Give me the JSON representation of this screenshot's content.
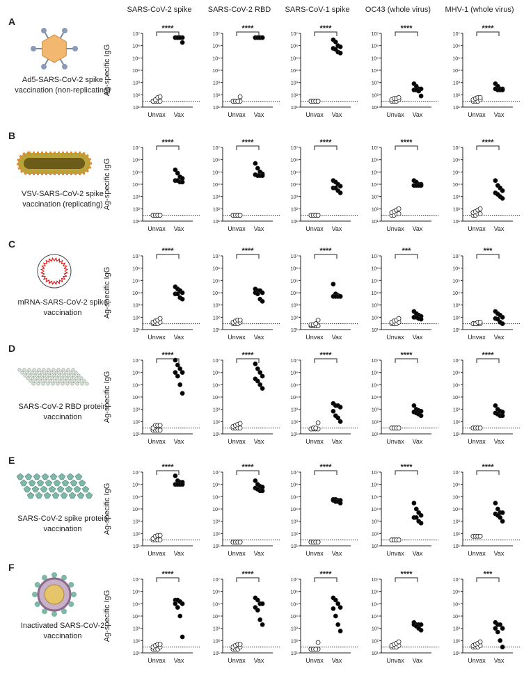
{
  "column_titles": [
    "SARS-CoV-2 spike",
    "SARS-CoV-2 RBD",
    "SARS-CoV-1 spike",
    "OC43 (whole virus)",
    "MHV-1 (whole virus)"
  ],
  "rows": [
    {
      "letter": "A",
      "caption": [
        "Ad5-SARS-CoV-2 spike",
        "vaccination (non-replicating)"
      ]
    },
    {
      "letter": "B",
      "caption": [
        "VSV-SARS-CoV-2 spike",
        "vaccination (replicating)"
      ]
    },
    {
      "letter": "C",
      "caption": [
        "mRNA-SARS-CoV-2 spike",
        "vaccination"
      ]
    },
    {
      "letter": "D",
      "caption": [
        "SARS-CoV-2 RBD protein",
        "vaccination"
      ]
    },
    {
      "letter": "E",
      "caption": [
        "SARS-CoV-2 spike protein",
        "vaccination"
      ]
    },
    {
      "letter": "F",
      "caption": [
        "Inactivated SARS-CoV-2",
        "vaccination"
      ]
    }
  ],
  "y_axis": {
    "label": "Ag-specific IgG",
    "log_scale": true,
    "ylim": [
      10,
      10000000
    ],
    "yticks": [
      {
        "value": 10,
        "label": "10¹"
      },
      {
        "value": 100,
        "label": "10²"
      },
      {
        "value": 1000,
        "label": "10³"
      },
      {
        "value": 10000,
        "label": "10⁴"
      },
      {
        "value": 100000,
        "label": "10⁵"
      },
      {
        "value": 1000000,
        "label": "10⁶"
      },
      {
        "value": 10000000,
        "label": "10⁷"
      }
    ],
    "threshold": 30,
    "categories": [
      "Unvax",
      "Vax"
    ],
    "group_colors": [
      "#ffffff",
      "#000000"
    ]
  },
  "chart_data": [
    {
      "type": "scatter",
      "significance": "****",
      "series": [
        {
          "values": [
            30,
            30,
            30,
            30,
            30,
            40,
            60,
            70
          ]
        },
        {
          "values": [
            4500000,
            4500000,
            4500000,
            4500000,
            4500000,
            4500000,
            4500000,
            1800000
          ]
        }
      ]
    },
    {
      "type": "scatter",
      "significance": "****",
      "series": [
        {
          "values": [
            30,
            30,
            30,
            30,
            30,
            30,
            30,
            70
          ]
        },
        {
          "values": [
            4500000,
            4500000,
            4500000,
            4500000,
            4500000,
            4500000,
            4500000,
            4500000
          ]
        }
      ]
    },
    {
      "type": "scatter",
      "significance": "****",
      "series": [
        {
          "values": [
            30,
            30,
            30,
            30,
            30,
            30,
            30,
            30
          ]
        },
        {
          "values": [
            3000000,
            2000000,
            1000000,
            800000,
            600000,
            500000,
            300000,
            250000
          ]
        }
      ]
    },
    {
      "type": "scatter",
      "significance": "****",
      "series": [
        {
          "values": [
            30,
            30,
            30,
            40,
            40,
            50,
            50,
            60
          ]
        },
        {
          "values": [
            800,
            500,
            300,
            300,
            250,
            250,
            200,
            80
          ]
        }
      ]
    },
    {
      "type": "scatter",
      "significance": "****",
      "series": [
        {
          "values": [
            30,
            30,
            30,
            40,
            40,
            50,
            60,
            60
          ]
        },
        {
          "values": [
            800,
            500,
            300,
            300,
            300,
            250,
            250,
            250
          ]
        }
      ]
    },
    {
      "type": "scatter",
      "significance": "****",
      "series": [
        {
          "values": [
            30,
            30,
            30,
            30,
            30,
            30,
            30,
            30
          ]
        },
        {
          "values": [
            150000,
            80000,
            40000,
            30000,
            20000,
            20000,
            15000,
            15000
          ]
        }
      ]
    },
    {
      "type": "scatter",
      "significance": "****",
      "series": [
        {
          "values": [
            30,
            30,
            30,
            30,
            30,
            30,
            30,
            30
          ]
        },
        {
          "values": [
            500000,
            200000,
            100000,
            70000,
            60000,
            50000,
            50000,
            50000
          ]
        }
      ]
    },
    {
      "type": "scatter",
      "significance": "****",
      "series": [
        {
          "values": [
            30,
            30,
            30,
            30,
            30,
            30,
            30,
            30
          ]
        },
        {
          "values": [
            20000,
            15000,
            10000,
            7000,
            5000,
            5000,
            3000,
            2000
          ]
        }
      ]
    },
    {
      "type": "scatter",
      "significance": "****",
      "series": [
        {
          "values": [
            30,
            30,
            40,
            40,
            50,
            60,
            80,
            100
          ]
        },
        {
          "values": [
            20000,
            15000,
            10000,
            10000,
            8000,
            8000,
            8000,
            8000
          ]
        }
      ]
    },
    {
      "type": "scatter",
      "significance": "****",
      "series": [
        {
          "values": [
            30,
            30,
            40,
            40,
            50,
            60,
            80,
            100
          ]
        },
        {
          "values": [
            20000,
            8000,
            5000,
            3000,
            2000,
            1500,
            1000,
            700
          ]
        }
      ]
    },
    {
      "type": "scatter",
      "significance": "****",
      "series": [
        {
          "values": [
            30,
            30,
            30,
            40,
            40,
            50,
            60,
            80
          ]
        },
        {
          "values": [
            30000,
            20000,
            15000,
            10000,
            8000,
            8000,
            4000,
            3000
          ]
        }
      ]
    },
    {
      "type": "scatter",
      "significance": "****",
      "series": [
        {
          "values": [
            30,
            30,
            30,
            40,
            40,
            50,
            60,
            60
          ]
        },
        {
          "values": [
            20000,
            15000,
            15000,
            10000,
            10000,
            8000,
            3000,
            2000
          ]
        }
      ]
    },
    {
      "type": "scatter",
      "significance": "****",
      "series": [
        {
          "values": [
            20,
            20,
            20,
            20,
            25,
            25,
            30,
            60
          ]
        },
        {
          "values": [
            50000,
            8000,
            6000,
            5000,
            5000,
            5000,
            5000,
            5000
          ]
        }
      ]
    },
    {
      "type": "scatter",
      "significance": "***",
      "series": [
        {
          "values": [
            30,
            30,
            30,
            40,
            40,
            50,
            60,
            80
          ]
        },
        {
          "values": [
            300,
            200,
            150,
            120,
            100,
            100,
            80,
            70
          ]
        }
      ]
    },
    {
      "type": "scatter",
      "significance": "***",
      "series": [
        {
          "values": [
            30,
            30,
            30,
            30,
            30,
            30,
            40,
            40
          ]
        },
        {
          "values": [
            300,
            200,
            150,
            100,
            80,
            70,
            40,
            30
          ]
        }
      ]
    },
    {
      "type": "scatter",
      "significance": "****",
      "series": [
        {
          "values": [
            20,
            20,
            20,
            20,
            30,
            50,
            50,
            50
          ]
        },
        {
          "values": [
            10000000,
            4000000,
            2000000,
            1000000,
            1000000,
            500000,
            100000,
            20000
          ]
        }
      ]
    },
    {
      "type": "scatter",
      "significance": "****",
      "series": [
        {
          "values": [
            30,
            30,
            30,
            30,
            40,
            50,
            60,
            70
          ]
        },
        {
          "values": [
            5000000,
            2000000,
            1000000,
            500000,
            300000,
            200000,
            100000,
            50000
          ]
        }
      ]
    },
    {
      "type": "scatter",
      "significance": "****",
      "series": [
        {
          "values": [
            25,
            25,
            25,
            25,
            25,
            30,
            30,
            80
          ]
        },
        {
          "values": [
            3000,
            2000,
            2000,
            1500,
            700,
            300,
            200,
            100
          ]
        }
      ]
    },
    {
      "type": "scatter",
      "significance": "****",
      "series": [
        {
          "values": [
            30,
            30,
            30,
            30,
            30,
            30,
            30,
            30
          ]
        },
        {
          "values": [
            2000,
            1000,
            800,
            700,
            600,
            500,
            400,
            300
          ]
        }
      ]
    },
    {
      "type": "scatter",
      "significance": "****",
      "series": [
        {
          "values": [
            30,
            30,
            30,
            30,
            30,
            30,
            30,
            30
          ]
        },
        {
          "values": [
            2000,
            1000,
            700,
            600,
            500,
            400,
            300,
            300
          ]
        }
      ]
    },
    {
      "type": "scatter",
      "significance": "****",
      "series": [
        {
          "values": [
            30,
            30,
            30,
            30,
            40,
            60,
            70,
            70
          ]
        },
        {
          "values": [
            5000000,
            2000000,
            1500000,
            1500000,
            1000000,
            1000000,
            1000000,
            1000000
          ]
        }
      ]
    },
    {
      "type": "scatter",
      "significance": "****",
      "series": [
        {
          "values": [
            20,
            20,
            20,
            20,
            20,
            20,
            20,
            20
          ]
        },
        {
          "values": [
            2000000,
            1000000,
            700000,
            600000,
            500000,
            400000,
            300000,
            300000
          ]
        }
      ]
    },
    {
      "type": "scatter",
      "significance": "****",
      "series": [
        {
          "values": [
            20,
            20,
            20,
            20,
            20,
            20,
            20,
            20
          ]
        },
        {
          "values": [
            60000,
            60000,
            50000,
            50000,
            50000,
            40000,
            40000,
            30000
          ]
        }
      ]
    },
    {
      "type": "scatter",
      "significance": "****",
      "series": [
        {
          "values": [
            30,
            30,
            30,
            30,
            30,
            30,
            30,
            30
          ]
        },
        {
          "values": [
            30000,
            10000,
            5000,
            3000,
            2000,
            2000,
            1000,
            700
          ]
        }
      ]
    },
    {
      "type": "scatter",
      "significance": "****",
      "series": [
        {
          "values": [
            60,
            60,
            60,
            60,
            60,
            60,
            60,
            60
          ]
        },
        {
          "values": [
            30000,
            10000,
            5000,
            5000,
            4000,
            3000,
            2000,
            1000
          ]
        }
      ]
    },
    {
      "type": "scatter",
      "significance": "****",
      "series": [
        {
          "values": [
            20,
            20,
            20,
            30,
            30,
            40,
            50,
            50
          ]
        },
        {
          "values": [
            200000,
            200000,
            150000,
            100000,
            100000,
            50000,
            10000,
            200
          ]
        }
      ]
    },
    {
      "type": "scatter",
      "significance": "****",
      "series": [
        {
          "values": [
            20,
            20,
            20,
            30,
            30,
            40,
            50,
            50
          ]
        },
        {
          "values": [
            300000,
            200000,
            100000,
            100000,
            50000,
            30000,
            5000,
            2000
          ]
        }
      ]
    },
    {
      "type": "scatter",
      "significance": "****",
      "series": [
        {
          "values": [
            20,
            20,
            20,
            20,
            20,
            20,
            20,
            70
          ]
        },
        {
          "values": [
            300000,
            200000,
            100000,
            50000,
            40000,
            10000,
            2000,
            600
          ]
        }
      ]
    },
    {
      "type": "scatter",
      "significance": "****",
      "series": [
        {
          "values": [
            30,
            30,
            30,
            40,
            40,
            50,
            60,
            80
          ]
        },
        {
          "values": [
            3000,
            2000,
            2000,
            2000,
            2000,
            1500,
            1000,
            700
          ]
        }
      ]
    },
    {
      "type": "scatter",
      "significance": "***",
      "series": [
        {
          "values": [
            30,
            30,
            30,
            40,
            40,
            50,
            60,
            80
          ]
        },
        {
          "values": [
            3000,
            2000,
            2000,
            1000,
            1000,
            500,
            100,
            30
          ]
        }
      ]
    }
  ]
}
